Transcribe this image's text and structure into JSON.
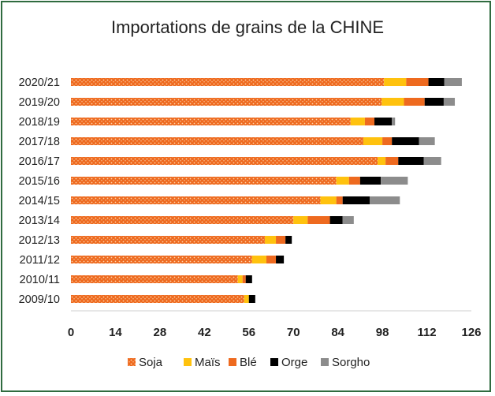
{
  "chart_data": {
    "type": "bar",
    "orientation": "horizontal",
    "stacked": true,
    "title": "Importations de grains de la CHINE",
    "categories": [
      "2020/21",
      "2019/20",
      "2018/19",
      "2017/18",
      "2016/17",
      "2015/16",
      "2014/15",
      "2013/14",
      "2012/13",
      "2011/12",
      "2010/11",
      "2009/10"
    ],
    "series": [
      {
        "name": "Soja",
        "color": "#ee6a1f",
        "pattern": "dots",
        "values": [
          98.5,
          97.8,
          88.0,
          92.0,
          96.5,
          83.5,
          78.5,
          70.0,
          61.0,
          57.0,
          52.5,
          54.5
        ]
      },
      {
        "name": "Maïs",
        "color": "#ffc20e",
        "values": [
          7.0,
          7.0,
          4.5,
          6.0,
          2.5,
          4.0,
          5.0,
          4.5,
          3.5,
          4.5,
          1.5,
          1.5
        ]
      },
      {
        "name": "Blé",
        "color": "#ee6a1f",
        "values": [
          7.0,
          6.5,
          3.0,
          3.0,
          4.0,
          3.5,
          2.0,
          7.0,
          3.0,
          3.0,
          1.0,
          0.0
        ]
      },
      {
        "name": "Orge",
        "color": "#000000",
        "values": [
          5.0,
          6.0,
          5.5,
          8.5,
          8.0,
          6.5,
          8.5,
          4.0,
          2.0,
          2.5,
          2.0,
          2.0
        ]
      },
      {
        "name": "Sorgho",
        "color": "#8c8c8c",
        "values": [
          5.5,
          3.5,
          1.0,
          5.0,
          5.5,
          8.5,
          9.5,
          3.5,
          0.0,
          0.0,
          0.0,
          0.0
        ]
      }
    ],
    "xlim": [
      0,
      126
    ],
    "xticks": [
      "0",
      "14",
      "28",
      "42",
      "56",
      "70",
      "84",
      "98",
      "112",
      "126"
    ],
    "grid": false,
    "legend_position": "bottom"
  }
}
